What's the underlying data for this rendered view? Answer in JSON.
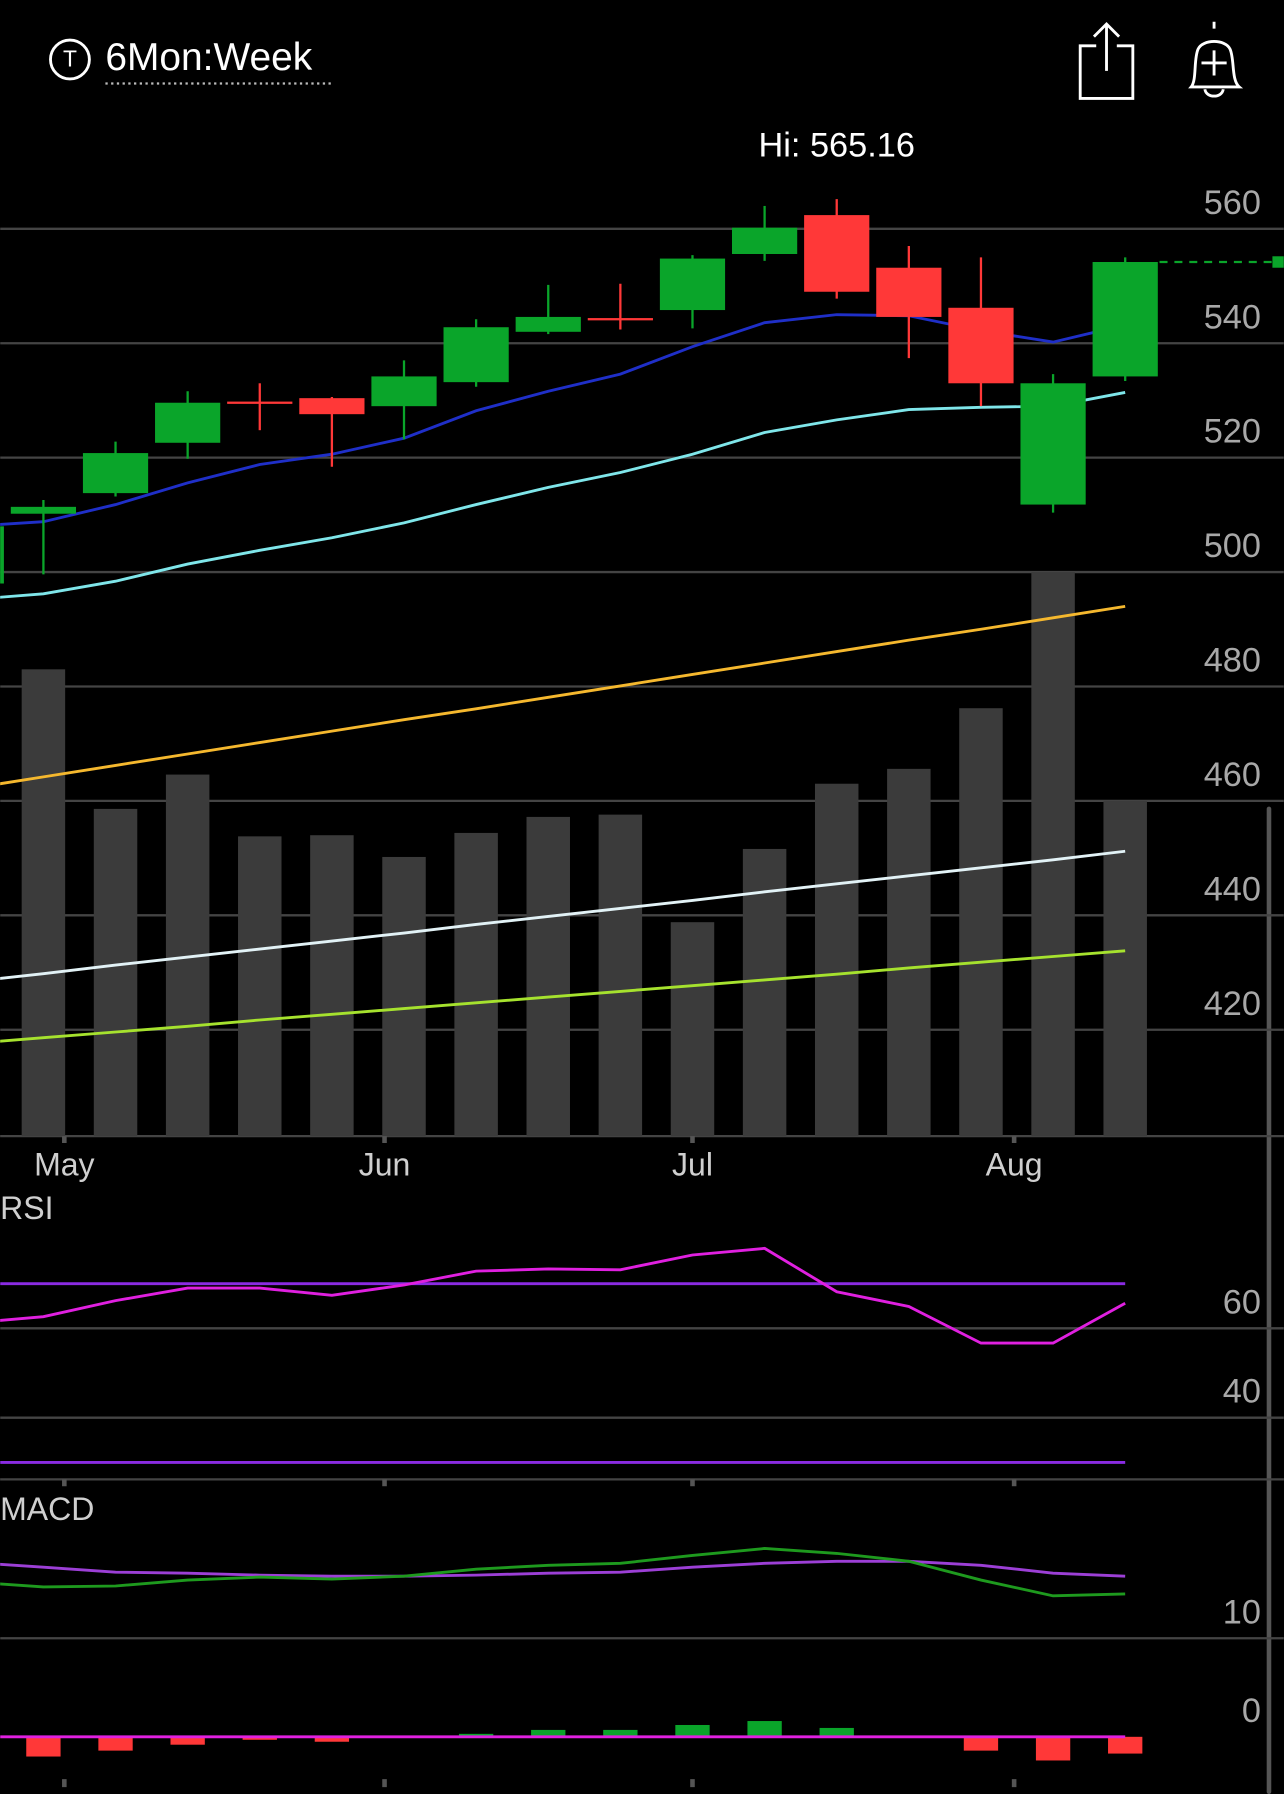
{
  "header": {
    "icon_letter": "T",
    "title": "6Mon:Week"
  },
  "chart_data": [
    {
      "type": "candlestick",
      "annotation": "Hi: 565.16",
      "categories": [
        null,
        null,
        null,
        null,
        null,
        null,
        null,
        null,
        null,
        null,
        null,
        null,
        null,
        null,
        null,
        null,
        null
      ],
      "open": [
        498,
        510.2,
        513.8,
        522.6,
        529.8,
        530.4,
        529,
        533.2,
        542,
        544.4,
        545.8,
        555.6,
        562.4,
        553.2,
        546.2,
        511.8,
        534.2
      ],
      "close": [
        508,
        511.4,
        520.8,
        529.6,
        529.4,
        527.6,
        534.2,
        542.8,
        544.6,
        544.2,
        554.8,
        560.2,
        549,
        544.6,
        533,
        533,
        554.2
      ],
      "high": [
        510,
        512.6,
        522.8,
        531.6,
        533,
        530.6,
        537,
        544.2,
        550.2,
        550.4,
        555.4,
        564,
        565.2,
        557,
        555,
        534.6,
        555
      ],
      "low": [
        496,
        499.6,
        513.2,
        519.8,
        524.8,
        518.4,
        523.2,
        532.4,
        541.6,
        542.4,
        542.6,
        554.4,
        547.8,
        537.4,
        529,
        510.4,
        533.4
      ],
      "up_color": "#0aa52a",
      "down_color": "#ff3838",
      "last_line_color": "#0aa52a",
      "volume": [
        null,
        408,
        286,
        316,
        262,
        263,
        244,
        265,
        279,
        281,
        187,
        251,
        308,
        321,
        374,
        493,
        293
      ],
      "volume_color": "#3b3b3b",
      "vlim": [
        0,
        500
      ],
      "lines": [
        {
          "color": "#1f2fc8",
          "values": [
            508,
            508.8,
            511.8,
            515.6,
            518.8,
            520.6,
            523.4,
            528.2,
            531.6,
            534.6,
            539.4,
            543.6,
            545,
            544.8,
            542.2,
            540.2,
            543.2
          ]
        },
        {
          "color": "#7fe6ea",
          "values": [
            495.2,
            496.2,
            498.4,
            501.4,
            503.8,
            506,
            508.6,
            511.8,
            514.8,
            517.4,
            520.6,
            524.4,
            526.6,
            528.4,
            528.8,
            529,
            531.4
          ]
        },
        {
          "color": "#f5b82e",
          "values": [
            462.2,
            464.2,
            466.2,
            468.2,
            470.2,
            472.2,
            474.2,
            476.1,
            478.1,
            480.1,
            482.1,
            484.1,
            486.1,
            488.1,
            490,
            492,
            494
          ]
        },
        {
          "color": "#e2f2f6",
          "values": [
            428.4,
            429.8,
            431.3,
            432.7,
            434.1,
            435.5,
            436.9,
            438.4,
            439.8,
            441.2,
            442.6,
            444.1,
            445.5,
            446.9,
            448.3,
            449.7,
            451.2
          ]
        },
        {
          "color": "#a6e22e",
          "values": [
            417.6,
            418.6,
            419.6,
            420.6,
            421.7,
            422.7,
            423.7,
            424.7,
            425.7,
            426.7,
            427.7,
            428.7,
            429.7,
            430.8,
            431.8,
            432.8,
            433.8
          ]
        }
      ],
      "xlim": [
        0.4,
        18.2
      ],
      "xticks": [
        {
          "value": 1.29,
          "label": "May"
        },
        {
          "value": 5.73,
          "label": "Jun"
        },
        {
          "value": 10,
          "label": "Jul"
        },
        {
          "value": 14.46,
          "label": "Aug"
        }
      ],
      "ylim": [
        401.4,
        578
      ],
      "yticks": [
        420,
        440,
        460,
        480,
        500,
        520,
        540,
        560
      ],
      "grid": true
    },
    {
      "type": "line",
      "title": "RSI",
      "values": [
        61.2,
        62.6,
        66.2,
        69,
        69,
        67.4,
        69.7,
        72.8,
        73.3,
        73.1,
        76.4,
        77.9,
        68.2,
        64.9,
        56.7,
        56.7,
        65.6
      ],
      "color": "#e020e0",
      "bands": [
        30,
        70
      ],
      "band_color": "#8a2be2",
      "xlim": [
        0.4,
        18.2
      ],
      "ylim": [
        26.2,
        89.7
      ],
      "yticks": [
        40,
        60
      ],
      "grid": true
    },
    {
      "type": "macd",
      "title": "MACD",
      "macd": [
        15.7,
        15.2,
        15.3,
        15.9,
        16.2,
        16,
        16.3,
        17,
        17.4,
        17.6,
        18.4,
        19.1,
        18.6,
        17.8,
        15.9,
        14.3,
        14.5
      ],
      "signal": [
        17.7,
        17.2,
        16.7,
        16.6,
        16.4,
        16.3,
        16.3,
        16.4,
        16.6,
        16.7,
        17.2,
        17.6,
        17.8,
        17.8,
        17.4,
        16.6,
        16.3
      ],
      "histogram": [
        null,
        -2,
        -1.4,
        -0.8,
        -0.3,
        -0.5,
        0.05,
        0.3,
        0.7,
        0.7,
        1.2,
        1.6,
        0.9,
        0.05,
        -1.4,
        -2.4,
        -1.7
      ],
      "macd_color": "#1e9a1e",
      "signal_color": "#9c3fd6",
      "up_color": "#0aa52a",
      "down_color": "#ff3838",
      "zero_line_color": "#e020e0",
      "xlim": [
        0.4,
        18.2
      ],
      "ylim": [
        -5.8,
        25.3
      ],
      "yticks": [
        0,
        10
      ],
      "grid": true
    }
  ]
}
